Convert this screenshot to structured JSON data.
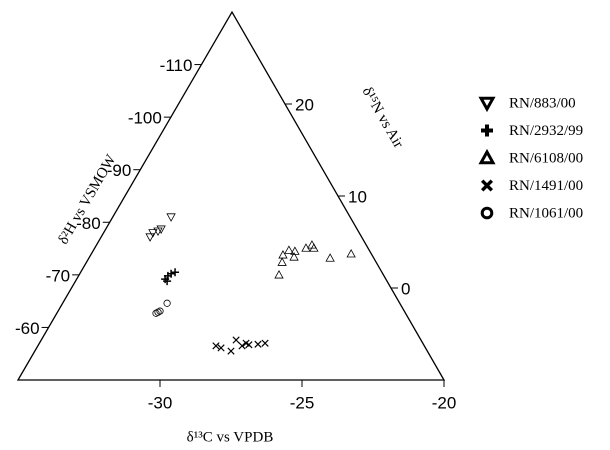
{
  "chart_data": {
    "type": "ternary",
    "x_label": "δ¹³C vs VPDB",
    "y_label": "δ²H vs VSMOW",
    "y2_label": "δ¹⁵N vs Air",
    "xlim": [
      -35,
      -20
    ],
    "xticks": [
      -30,
      -25,
      -20
    ],
    "ylim": [
      -50,
      -120
    ],
    "yticks": [
      -60,
      -70,
      -80,
      -90,
      -100,
      -110
    ],
    "y2lim": [
      -10,
      30
    ],
    "y2ticks": [
      0,
      10,
      20
    ],
    "legend": "right",
    "series": [
      {
        "name": "RN/883/00",
        "marker": "triangle-down",
        "color": "#000000",
        "x": [
          -30.35,
          -30.25,
          -30.07,
          -29.96,
          -29.61
        ],
        "values": [
          -77.2,
          -78.0,
          -78.3,
          -78.7,
          -81.0
        ]
      },
      {
        "name": "RN/2932/99",
        "marker": "plus",
        "color": "#000000",
        "x": [
          -29.82,
          -29.72,
          -29.61,
          -29.47,
          -29.75
        ],
        "values": [
          -69.2,
          -69.8,
          -70.2,
          -70.5,
          -68.8
        ]
      },
      {
        "name": "RN/6108/00",
        "marker": "triangle-up",
        "color": "#000000",
        "x": [
          -25.81,
          -25.7,
          -25.67,
          -25.46,
          -25.28,
          -25.25,
          -24.86,
          -24.65,
          -24.58,
          -24.01,
          -23.27
        ],
        "values": [
          -70.0,
          -72.4,
          -73.8,
          -74.7,
          -73.4,
          -74.5,
          -75.1,
          -75.7,
          -75.1,
          -73.2,
          -74.0
        ]
      },
      {
        "name": "RN/1491/00",
        "marker": "x",
        "color": "#000000",
        "x": [
          -28.03,
          -27.85,
          -27.5,
          -27.32,
          -27.11,
          -26.97,
          -26.87,
          -26.55,
          -26.3
        ],
        "values": [
          -56.5,
          -56.1,
          -55.5,
          -57.6,
          -56.5,
          -57.0,
          -56.7,
          -56.8,
          -57.0
        ]
      },
      {
        "name": "RN/1061/00",
        "marker": "circle",
        "color": "#000000",
        "x": [
          -30.14,
          -30.07,
          -30.0,
          -29.75
        ],
        "values": [
          -62.7,
          -62.9,
          -63.1,
          -64.6
        ]
      }
    ]
  }
}
